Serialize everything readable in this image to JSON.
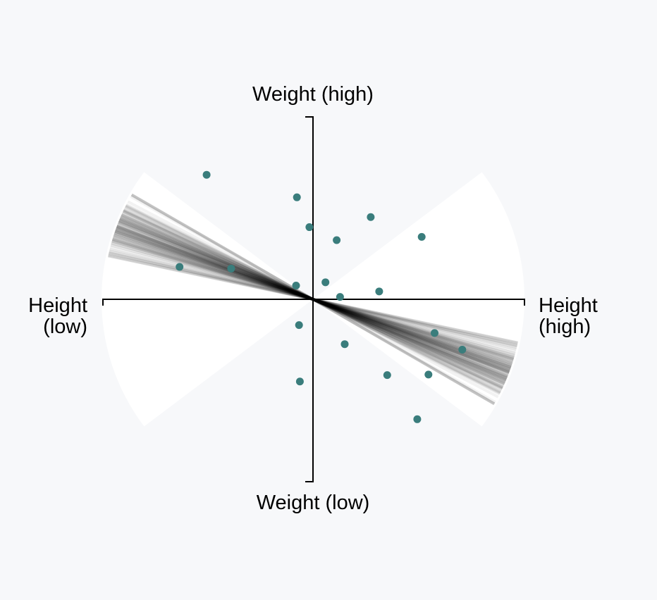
{
  "chart_data": {
    "type": "scatter",
    "axis_labels": {
      "top": "Weight (high)",
      "bottom": "Weight (low)",
      "left": [
        "Height",
        "(low)"
      ],
      "right": [
        "Height",
        "(high)"
      ]
    },
    "x_range": [
      -1,
      1
    ],
    "y_range": [
      -1,
      1
    ],
    "grid": false,
    "legend": "none",
    "points": [
      {
        "x": -0.503,
        "y": 0.68
      },
      {
        "x": -0.076,
        "y": 0.557
      },
      {
        "x": -0.017,
        "y": 0.394
      },
      {
        "x": 0.273,
        "y": 0.449
      },
      {
        "x": 0.112,
        "y": 0.323
      },
      {
        "x": 0.514,
        "y": 0.341
      },
      {
        "x": -0.631,
        "y": 0.177
      },
      {
        "x": -0.387,
        "y": 0.168
      },
      {
        "x": -0.08,
        "y": 0.075
      },
      {
        "x": 0.059,
        "y": 0.093
      },
      {
        "x": 0.313,
        "y": 0.043
      },
      {
        "x": 0.128,
        "y": 0.013
      },
      {
        "x": -0.066,
        "y": -0.141
      },
      {
        "x": 0.15,
        "y": -0.245
      },
      {
        "x": 0.575,
        "y": -0.184
      },
      {
        "x": 0.706,
        "y": -0.275
      },
      {
        "x": 0.351,
        "y": -0.414
      },
      {
        "x": 0.546,
        "y": -0.411
      },
      {
        "x": -0.062,
        "y": -0.449
      },
      {
        "x": 0.493,
        "y": -0.655
      }
    ],
    "fit_lines": {
      "count": 120,
      "slope_angle_deg_range": [
        -30,
        -12
      ],
      "slope_angle_deg_center": -21
    },
    "wedge_angle_deg": 37,
    "colors": {
      "background": "#f7f8fa",
      "wedge": "#ffffff",
      "point": "#3a7d7c",
      "fit_line": "#000000",
      "axis": "#000000"
    }
  }
}
